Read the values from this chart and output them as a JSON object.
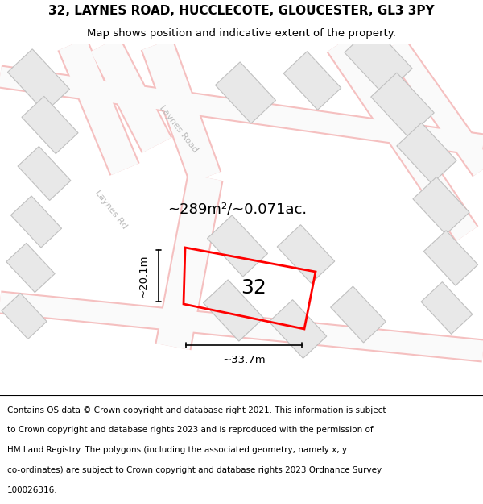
{
  "title_line1": "32, LAYNES ROAD, HUCCLECOTE, GLOUCESTER, GL3 3PY",
  "title_line2": "Map shows position and indicative extent of the property.",
  "footer_lines": [
    "Contains OS data © Crown copyright and database right 2021. This information is subject",
    "to Crown copyright and database rights 2023 and is reproduced with the permission of",
    "HM Land Registry. The polygons (including the associated geometry, namely x, y",
    "co-ordinates) are subject to Crown copyright and database rights 2023 Ordnance Survey",
    "100026316."
  ],
  "background_color": "#ffffff",
  "map_bg_color": "#fdf5f5",
  "road_color": "#f5c0c0",
  "road_fill": "#fafafa",
  "building_fill": "#e8e8e8",
  "building_edge": "#c0c0c0",
  "highlight_color": "#ff0000",
  "highlight_lw": 2.0,
  "area_label": "~289m²/~0.071ac.",
  "dim_width_label": "~33.7m",
  "dim_height_label": "~20.1m",
  "road_label1": "Laynes Road",
  "road_label2": "Laynes Rd",
  "title_fontsize": 11,
  "subtitle_fontsize": 9.5,
  "footer_fontsize": 7.5,
  "area_fontsize": 13,
  "label32_fontsize": 18,
  "dim_fontsize": 9.5
}
